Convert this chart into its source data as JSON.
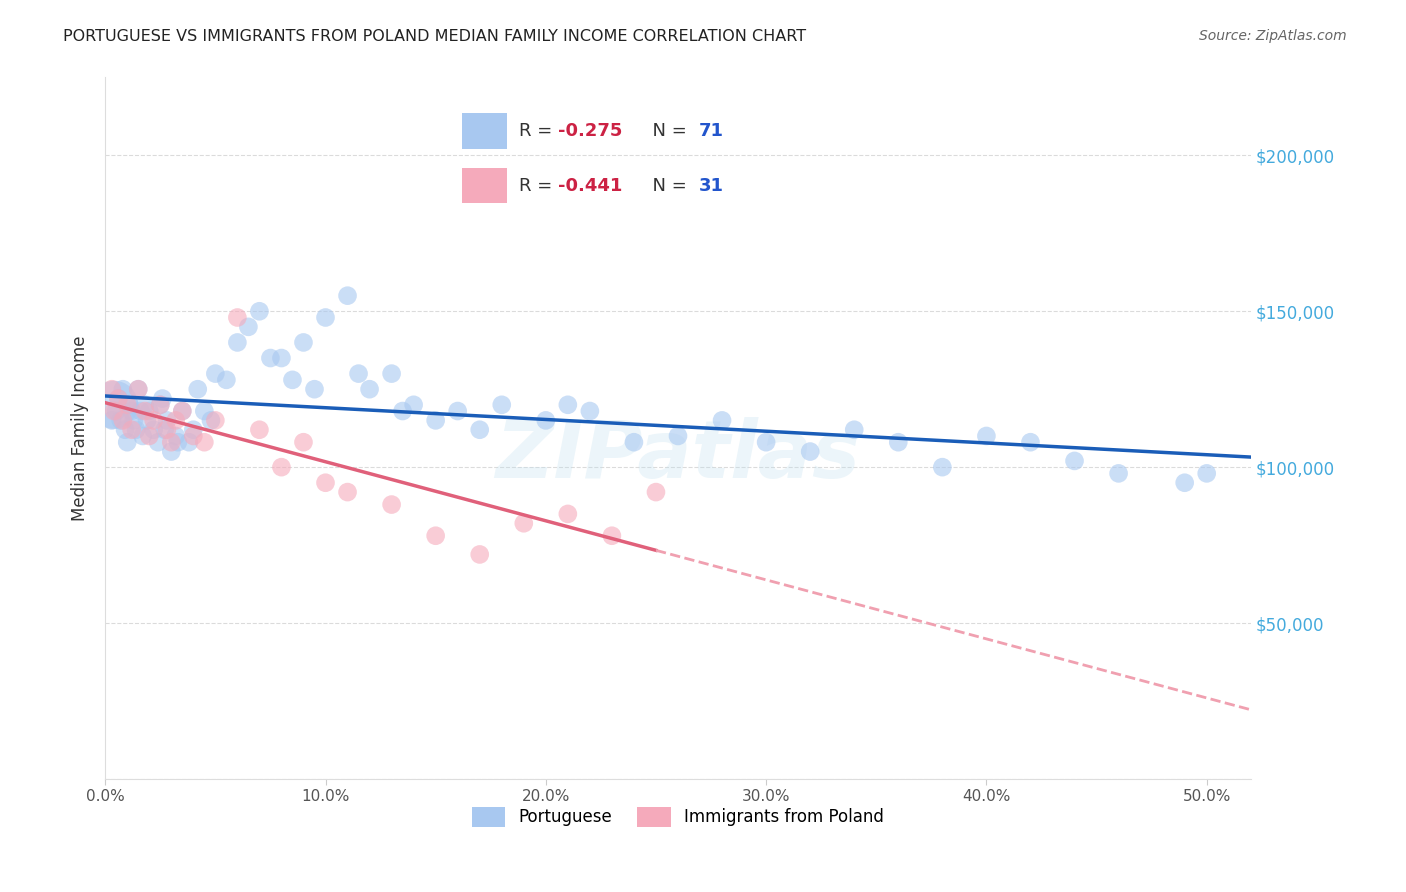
{
  "title": "PORTUGUESE VS IMMIGRANTS FROM POLAND MEDIAN FAMILY INCOME CORRELATION CHART",
  "source": "Source: ZipAtlas.com",
  "ylabel": "Median Family Income",
  "watermark": "ZIPatlas",
  "legend_label_blue": "Portuguese",
  "legend_label_pink": "Immigrants from Poland",
  "legend_blue_r": "R = -0.275",
  "legend_blue_n": "N = 71",
  "legend_pink_r": "R = -0.441",
  "legend_pink_n": "N = 31",
  "xlim": [
    0.0,
    0.52
  ],
  "ylim": [
    0,
    225000
  ],
  "blue_scatter_color": "#A8C8F0",
  "pink_scatter_color": "#F5AABB",
  "blue_line_color": "#1A5DB8",
  "pink_line_color": "#E0607A",
  "pink_dash_color": "#F0A0B0",
  "grid_color": "#CCCCCC",
  "title_color": "#222222",
  "right_tick_color": "#44AADD",
  "r_color": "#CC2244",
  "n_color": "#2255CC",
  "ytick_labels": [
    "",
    "$50,000",
    "$100,000",
    "$150,000",
    "$200,000"
  ],
  "xtick_labels": [
    "0.0%",
    "10.0%",
    "20.0%",
    "20.0%",
    "30.0%",
    "40.0%",
    "50.0%"
  ],
  "port_x": [
    0.004,
    0.005,
    0.006,
    0.007,
    0.008,
    0.009,
    0.01,
    0.011,
    0.012,
    0.013,
    0.014,
    0.015,
    0.016,
    0.017,
    0.018,
    0.019,
    0.02,
    0.022,
    0.024,
    0.026,
    0.028,
    0.03,
    0.032,
    0.035,
    0.038,
    0.04,
    0.042,
    0.045,
    0.05,
    0.055,
    0.06,
    0.065,
    0.07,
    0.08,
    0.09,
    0.1,
    0.11,
    0.12,
    0.13,
    0.14,
    0.15,
    0.16,
    0.17,
    0.18,
    0.2,
    0.21,
    0.22,
    0.24,
    0.26,
    0.28,
    0.3,
    0.32,
    0.34,
    0.36,
    0.38,
    0.4,
    0.42,
    0.44,
    0.46,
    0.49,
    0.5,
    0.003,
    0.025,
    0.027,
    0.033,
    0.048,
    0.075,
    0.085,
    0.095,
    0.115,
    0.135
  ],
  "port_y": [
    120000,
    118000,
    122000,
    115000,
    125000,
    112000,
    108000,
    120000,
    118000,
    115000,
    112000,
    125000,
    118000,
    110000,
    120000,
    115000,
    118000,
    112000,
    108000,
    122000,
    115000,
    105000,
    110000,
    118000,
    108000,
    112000,
    125000,
    118000,
    130000,
    128000,
    140000,
    145000,
    150000,
    135000,
    140000,
    148000,
    155000,
    125000,
    130000,
    120000,
    115000,
    118000,
    112000,
    120000,
    115000,
    120000,
    118000,
    108000,
    110000,
    115000,
    108000,
    105000,
    112000,
    108000,
    100000,
    110000,
    108000,
    102000,
    98000,
    95000,
    98000,
    115000,
    120000,
    112000,
    108000,
    115000,
    135000,
    128000,
    125000,
    130000,
    118000
  ],
  "port_size_large": 1200,
  "port_size_large_idx": 0,
  "pol_x": [
    0.004,
    0.006,
    0.008,
    0.01,
    0.012,
    0.015,
    0.018,
    0.02,
    0.022,
    0.025,
    0.028,
    0.03,
    0.032,
    0.035,
    0.04,
    0.045,
    0.05,
    0.06,
    0.07,
    0.08,
    0.09,
    0.1,
    0.11,
    0.13,
    0.15,
    0.17,
    0.19,
    0.21,
    0.23,
    0.25,
    0.003
  ],
  "pol_y": [
    118000,
    122000,
    115000,
    120000,
    112000,
    125000,
    118000,
    110000,
    115000,
    120000,
    112000,
    108000,
    115000,
    118000,
    110000,
    108000,
    115000,
    148000,
    112000,
    100000,
    108000,
    95000,
    92000,
    88000,
    78000,
    72000,
    82000,
    85000,
    78000,
    92000,
    125000
  ]
}
